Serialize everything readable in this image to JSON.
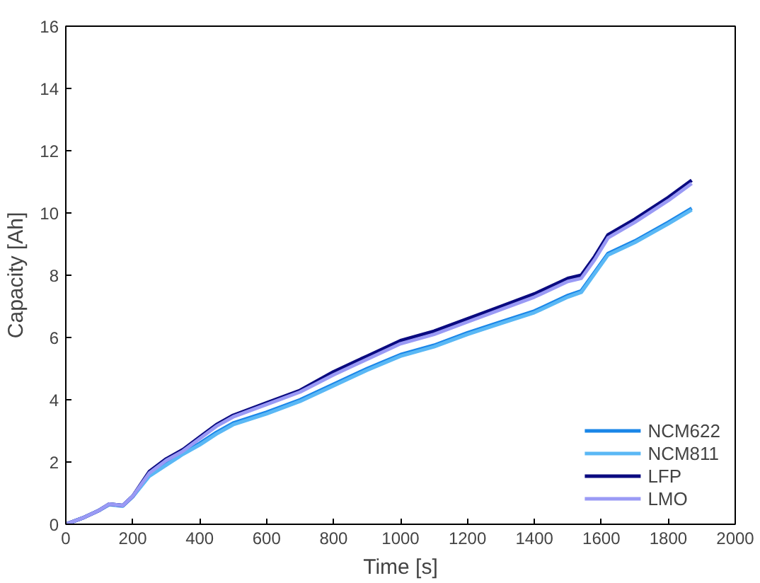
{
  "chart_data": {
    "type": "line",
    "xlabel": "Time [s]",
    "ylabel": "Capacity [Ah]",
    "x": [
      0,
      50,
      100,
      130,
      170,
      200,
      250,
      300,
      350,
      400,
      450,
      500,
      600,
      700,
      800,
      900,
      1000,
      1100,
      1200,
      1300,
      1400,
      1500,
      1540,
      1580,
      1620,
      1700,
      1800,
      1870
    ],
    "series": [
      {
        "name": "NCM622",
        "color": "#1a86e8",
        "values": [
          0,
          0.2,
          0.45,
          0.65,
          0.6,
          0.9,
          1.6,
          1.95,
          2.3,
          2.6,
          2.95,
          3.25,
          3.6,
          4.0,
          4.5,
          5.0,
          5.45,
          5.75,
          6.15,
          6.5,
          6.85,
          7.35,
          7.5,
          8.1,
          8.7,
          9.1,
          9.7,
          10.15
        ]
      },
      {
        "name": "NCM811",
        "color": "#5ab8f5",
        "values": [
          0,
          0.2,
          0.45,
          0.63,
          0.58,
          0.88,
          1.55,
          1.9,
          2.25,
          2.55,
          2.9,
          3.2,
          3.55,
          3.95,
          4.45,
          4.95,
          5.4,
          5.7,
          6.1,
          6.45,
          6.8,
          7.3,
          7.45,
          8.05,
          8.65,
          9.05,
          9.65,
          10.1
        ]
      },
      {
        "name": "LFP",
        "color": "#0a0a80",
        "values": [
          0,
          0.2,
          0.45,
          0.65,
          0.6,
          0.9,
          1.7,
          2.1,
          2.4,
          2.8,
          3.2,
          3.5,
          3.9,
          4.3,
          4.9,
          5.4,
          5.9,
          6.2,
          6.6,
          7.0,
          7.4,
          7.9,
          8.0,
          8.6,
          9.3,
          9.8,
          10.5,
          11.05
        ]
      },
      {
        "name": "LMO",
        "color": "#9a9af5",
        "values": [
          0,
          0.2,
          0.45,
          0.65,
          0.6,
          0.9,
          1.65,
          2.05,
          2.35,
          2.75,
          3.15,
          3.45,
          3.85,
          4.25,
          4.8,
          5.3,
          5.8,
          6.1,
          6.5,
          6.9,
          7.3,
          7.8,
          7.9,
          8.5,
          9.2,
          9.7,
          10.4,
          10.95
        ]
      }
    ],
    "xlim": [
      0,
      2000
    ],
    "xticks": [
      0,
      200,
      400,
      600,
      800,
      1000,
      1200,
      1400,
      1600,
      1800,
      2000
    ],
    "ylim": [
      0,
      16
    ],
    "yticks": [
      0,
      2,
      4,
      6,
      8,
      10,
      12,
      14,
      16
    ],
    "grid": false,
    "legend": "bottom right",
    "marker": "none",
    "line_style": "solid"
  }
}
